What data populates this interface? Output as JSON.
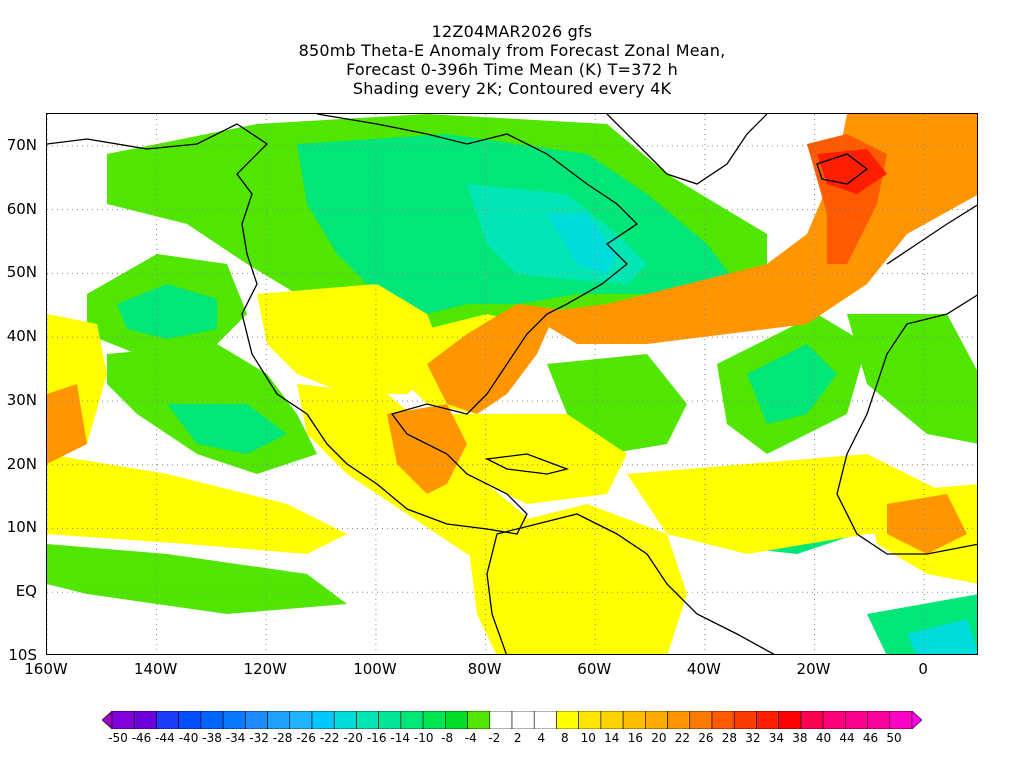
{
  "title": {
    "line1": "12Z04MAR2026 gfs",
    "line2": "850mb Theta-E Anomaly from Forecast Zonal Mean,",
    "line3": "Forecast 0-396h Time Mean (K) T=372 h",
    "line4": "Shading every 2K; Contoured every 4K"
  },
  "map": {
    "lon_range": [
      -160,
      10
    ],
    "lat_range": [
      -10,
      75
    ],
    "grid": "dotted",
    "lat_labels": [
      "70N",
      "60N",
      "50N",
      "40N",
      "30N",
      "20N",
      "10N",
      "EQ",
      "10S"
    ],
    "lon_labels": [
      "160W",
      "140W",
      "120W",
      "100W",
      "80W",
      "60W",
      "40W",
      "20W",
      "0"
    ]
  },
  "colorbar": {
    "labels": [
      "-50",
      "-46",
      "-44",
      "-40",
      "-38",
      "-34",
      "-32",
      "-28",
      "-26",
      "-22",
      "-20",
      "-16",
      "-14",
      "-10",
      "-8",
      "-4",
      "-2",
      "2",
      "4",
      "8",
      "10",
      "14",
      "16",
      "20",
      "22",
      "26",
      "28",
      "32",
      "34",
      "38",
      "40",
      "44",
      "46",
      "50"
    ],
    "colors": [
      "#a000c8",
      "#8200dc",
      "#6e00dc",
      "#1e3cff",
      "#0050ff",
      "#0064ff",
      "#0a78ff",
      "#1e8cff",
      "#1ea0ff",
      "#1eb4ff",
      "#00c8ff",
      "#00dcdc",
      "#00e6b4",
      "#00e696",
      "#00e678",
      "#00e650",
      "#00dc28",
      "#50e600",
      "#ffffff",
      "#ffffff",
      "#ffffff",
      "#ffff00",
      "#ffe600",
      "#ffd200",
      "#ffbe00",
      "#ffaa00",
      "#ff9600",
      "#ff7800",
      "#ff5a00",
      "#ff3c00",
      "#ff1e00",
      "#ff0000",
      "#ff0050",
      "#ff0078",
      "#ff008c",
      "#ff00a0",
      "#ff00c8",
      "#ff00f0"
    ]
  },
  "field_colors": {
    "green": "#50e600",
    "green_teal": "#00e678",
    "teal": "#00e6b4",
    "cyan": "#00dcdc",
    "yellow": "#ffff00",
    "gold": "#ffd200",
    "orange": "#ff9600",
    "red_orange": "#ff5a00",
    "red": "#ff1e00"
  }
}
